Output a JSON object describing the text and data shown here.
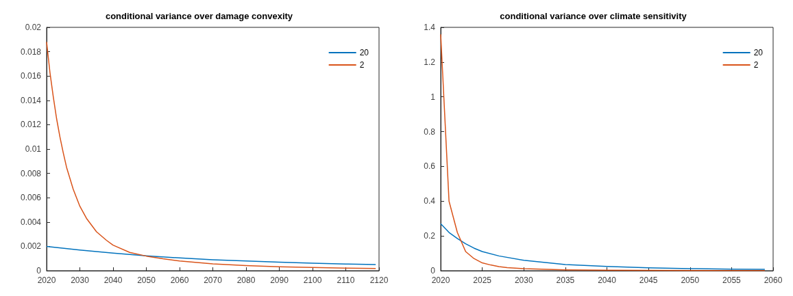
{
  "chart_data": [
    {
      "type": "line",
      "title": "conditional variance over damage convexity",
      "xlim": [
        2020,
        2120
      ],
      "xticks": [
        2020,
        2030,
        2040,
        2050,
        2060,
        2070,
        2080,
        2090,
        2100,
        2110,
        2120
      ],
      "ylim": [
        0,
        0.02
      ],
      "yticks": [
        0,
        0.002,
        0.004,
        0.006,
        0.008,
        0.01,
        0.012,
        0.014,
        0.016,
        0.018,
        0.02
      ],
      "grid": false,
      "legend": "top right",
      "marker": "none",
      "line_style": "solid",
      "series": [
        {
          "name": "20",
          "color": "#0072bd",
          "x": [
            2020,
            2030,
            2040,
            2050,
            2060,
            2070,
            2080,
            2090,
            2100,
            2110,
            2119
          ],
          "values": [
            0.002,
            0.0017,
            0.00145,
            0.00122,
            0.00105,
            0.0009,
            0.0008,
            0.0007,
            0.00062,
            0.00055,
            0.0005
          ]
        },
        {
          "name": "2",
          "color": "#d95319",
          "x": [
            2020,
            2021,
            2022,
            2023,
            2024,
            2025,
            2026,
            2028,
            2030,
            2032,
            2035,
            2038,
            2040,
            2045,
            2050,
            2055,
            2060,
            2070,
            2080,
            2090,
            2100,
            2110,
            2119
          ],
          "values": [
            0.0188,
            0.0163,
            0.0143,
            0.0125,
            0.011,
            0.0097,
            0.0085,
            0.0067,
            0.0053,
            0.0043,
            0.0032,
            0.0025,
            0.0021,
            0.0015,
            0.0012,
            0.00098,
            0.0008,
            0.00056,
            0.00042,
            0.00033,
            0.00026,
            0.00021,
            0.00018
          ]
        }
      ]
    },
    {
      "type": "line",
      "title": "conditional variance over climate sensitivity",
      "xlim": [
        2020,
        2060
      ],
      "xticks": [
        2020,
        2025,
        2030,
        2035,
        2040,
        2045,
        2050,
        2055,
        2060
      ],
      "ylim": [
        0,
        1.4
      ],
      "yticks": [
        0,
        0.2,
        0.4,
        0.6,
        0.8,
        1,
        1.2,
        1.4
      ],
      "grid": false,
      "legend": "top right",
      "marker": "none",
      "line_style": "solid",
      "series": [
        {
          "name": "20",
          "color": "#0072bd",
          "x": [
            2020,
            2021,
            2022,
            2023,
            2024,
            2025,
            2027,
            2030,
            2035,
            2040,
            2045,
            2050,
            2055,
            2059
          ],
          "values": [
            0.27,
            0.22,
            0.185,
            0.155,
            0.13,
            0.11,
            0.085,
            0.06,
            0.035,
            0.025,
            0.017,
            0.012,
            0.009,
            0.008
          ]
        },
        {
          "name": "2",
          "color": "#d95319",
          "x": [
            2020,
            2021,
            2022,
            2023,
            2024,
            2025,
            2026,
            2027,
            2028,
            2030,
            2035,
            2040,
            2050,
            2059
          ],
          "values": [
            1.36,
            0.4,
            0.22,
            0.11,
            0.07,
            0.045,
            0.033,
            0.024,
            0.018,
            0.012,
            0.005,
            0.003,
            0.001,
            0.001
          ]
        }
      ]
    }
  ]
}
